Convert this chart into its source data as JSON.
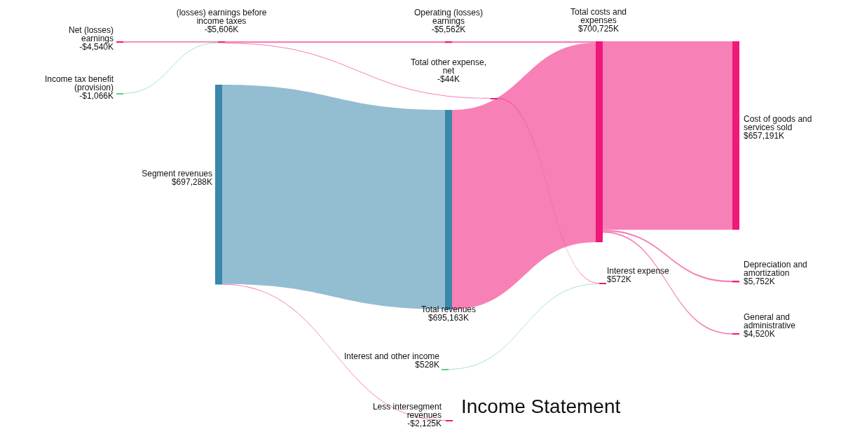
{
  "chart_data": {
    "type": "other",
    "title": "Income Statement",
    "categories": [
      "Net (losses) earnings",
      "Income tax benefit (provision)",
      "(losses) earnings before income taxes",
      "Segment revenues",
      "Operating (losses) earnings",
      "Total other expense, net",
      "Total revenues",
      "Less intersegment revenues",
      "Interest and other income",
      "Total costs and expenses",
      "Interest expense",
      "Cost of goods and services sold",
      "Depreciation and amortization",
      "General and administrative"
    ],
    "values": [
      -4540,
      -1066,
      -5606,
      697288,
      -5562,
      -44,
      695163,
      -2125,
      528,
      700725,
      572,
      657191,
      5752,
      4520
    ],
    "value_labels": [
      "-$4,540K",
      "-$1,066K",
      "-$5,606K",
      "$697,288K",
      "-$5,562K",
      "-$44K",
      "$695,163K",
      "-$2,125K",
      "$528K",
      "$700,725K",
      "$572K",
      "$657,191K",
      "$5,752K",
      "$4,520K"
    ],
    "colors": [
      "#f0177a",
      "#5ccf8a",
      "#e0306f",
      "#3a87ab",
      "#f0177a",
      "#f0177a",
      "#3a87ab",
      "#f0177a",
      "#5ccf8a",
      "#f0177a",
      "#f0177a",
      "#f0177a",
      "#f0177a",
      "#f0177a"
    ]
  }
}
